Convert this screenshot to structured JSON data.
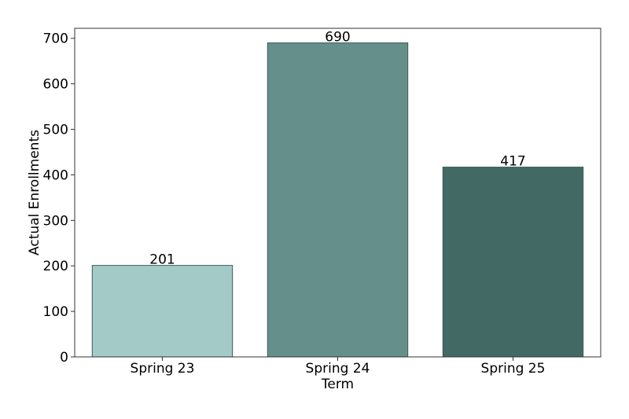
{
  "chart_data": {
    "type": "bar",
    "categories": [
      "Spring 23",
      "Spring 24",
      "Spring 25"
    ],
    "values": [
      201,
      690,
      417
    ],
    "data_labels": [
      "201",
      "690",
      "417"
    ],
    "colors": [
      "#a3cac6",
      "#658f8b",
      "#426964"
    ],
    "edge_color": "#3d5c58",
    "title": "",
    "xlabel": "Term",
    "ylabel": "Actual Enrollments",
    "ylim": [
      0,
      722
    ],
    "yticks": [
      0,
      100,
      200,
      300,
      400,
      500,
      600,
      700
    ],
    "ytick_labels": [
      "0",
      "100",
      "200",
      "300",
      "400",
      "500",
      "600",
      "700"
    ],
    "grid": false,
    "legend": "none"
  }
}
